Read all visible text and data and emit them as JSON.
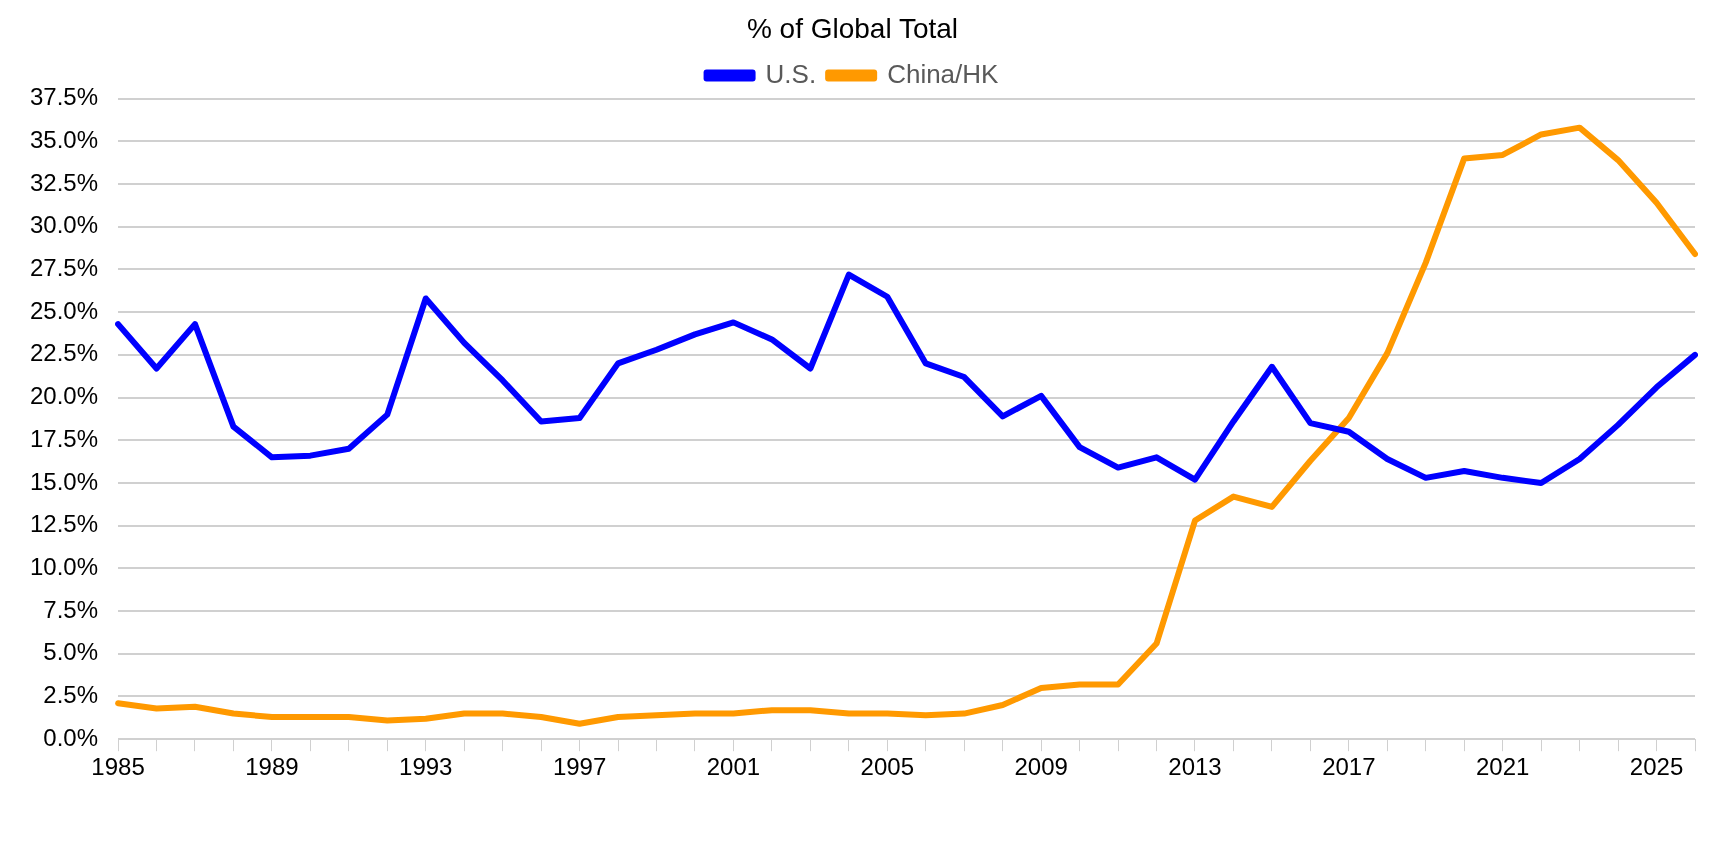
{
  "chart_data": {
    "type": "line",
    "title": "% of Global Total",
    "categories": [
      "1985",
      null,
      null,
      null,
      "1989",
      null,
      null,
      null,
      "1993",
      null,
      null,
      null,
      "1997",
      null,
      null,
      null,
      "2001",
      null,
      null,
      null,
      "2005",
      null,
      null,
      null,
      "2009",
      null,
      null,
      null,
      "2013",
      null,
      null,
      null,
      "2017",
      null,
      null,
      null,
      "2021",
      null,
      null,
      null,
      "2025",
      null
    ],
    "series": [
      {
        "name": "U.S.",
        "color": "#0000ff",
        "values": [
          24.3,
          21.7,
          24.3,
          18.3,
          16.5,
          16.6,
          17.0,
          19.0,
          25.8,
          23.2,
          21.0,
          18.6,
          18.8,
          22.0,
          22.8,
          23.7,
          24.4,
          23.4,
          21.7,
          27.2,
          25.9,
          22.0,
          21.2,
          18.9,
          20.1,
          17.1,
          15.9,
          16.5,
          15.2,
          18.6,
          21.8,
          18.5,
          18.0,
          16.4,
          15.3,
          15.7,
          15.3,
          15.0,
          16.4,
          18.4,
          20.6,
          22.5
        ]
      },
      {
        "name": "China/HK",
        "color": "#ff9900",
        "values": [
          2.1,
          1.8,
          1.9,
          1.5,
          1.3,
          1.3,
          1.3,
          1.1,
          1.2,
          1.5,
          1.5,
          1.3,
          0.9,
          1.3,
          1.4,
          1.5,
          1.5,
          1.7,
          1.7,
          1.5,
          1.5,
          1.4,
          1.5,
          2.0,
          3.0,
          3.2,
          3.2,
          5.6,
          12.8,
          14.2,
          13.6,
          16.3,
          18.8,
          22.6,
          27.9,
          34.0,
          34.2,
          35.4,
          35.8,
          33.9,
          31.4,
          28.4
        ]
      }
    ],
    "ylim": [
      0,
      37.5
    ],
    "yticks": [
      {
        "value": 0,
        "label": "0.0%"
      },
      {
        "value": 2.5,
        "label": "2.5%"
      },
      {
        "value": 5,
        "label": "5.0%"
      },
      {
        "value": 7.5,
        "label": "7.5%"
      },
      {
        "value": 10,
        "label": "10.0%"
      },
      {
        "value": 12.5,
        "label": "12.5%"
      },
      {
        "value": 15,
        "label": "15.0%"
      },
      {
        "value": 17.5,
        "label": "17.5%"
      },
      {
        "value": 20,
        "label": "20.0%"
      },
      {
        "value": 22.5,
        "label": "22.5%"
      },
      {
        "value": 25,
        "label": "25.0%"
      },
      {
        "value": 27.5,
        "label": "27.5%"
      },
      {
        "value": 30,
        "label": "30.0%"
      },
      {
        "value": 32.5,
        "label": "32.5%"
      },
      {
        "value": 35,
        "label": "35.0%"
      },
      {
        "value": 37.5,
        "label": "37.5%"
      }
    ],
    "grid": "y",
    "legend": "top",
    "marker": "none",
    "line_style": "solid"
  }
}
